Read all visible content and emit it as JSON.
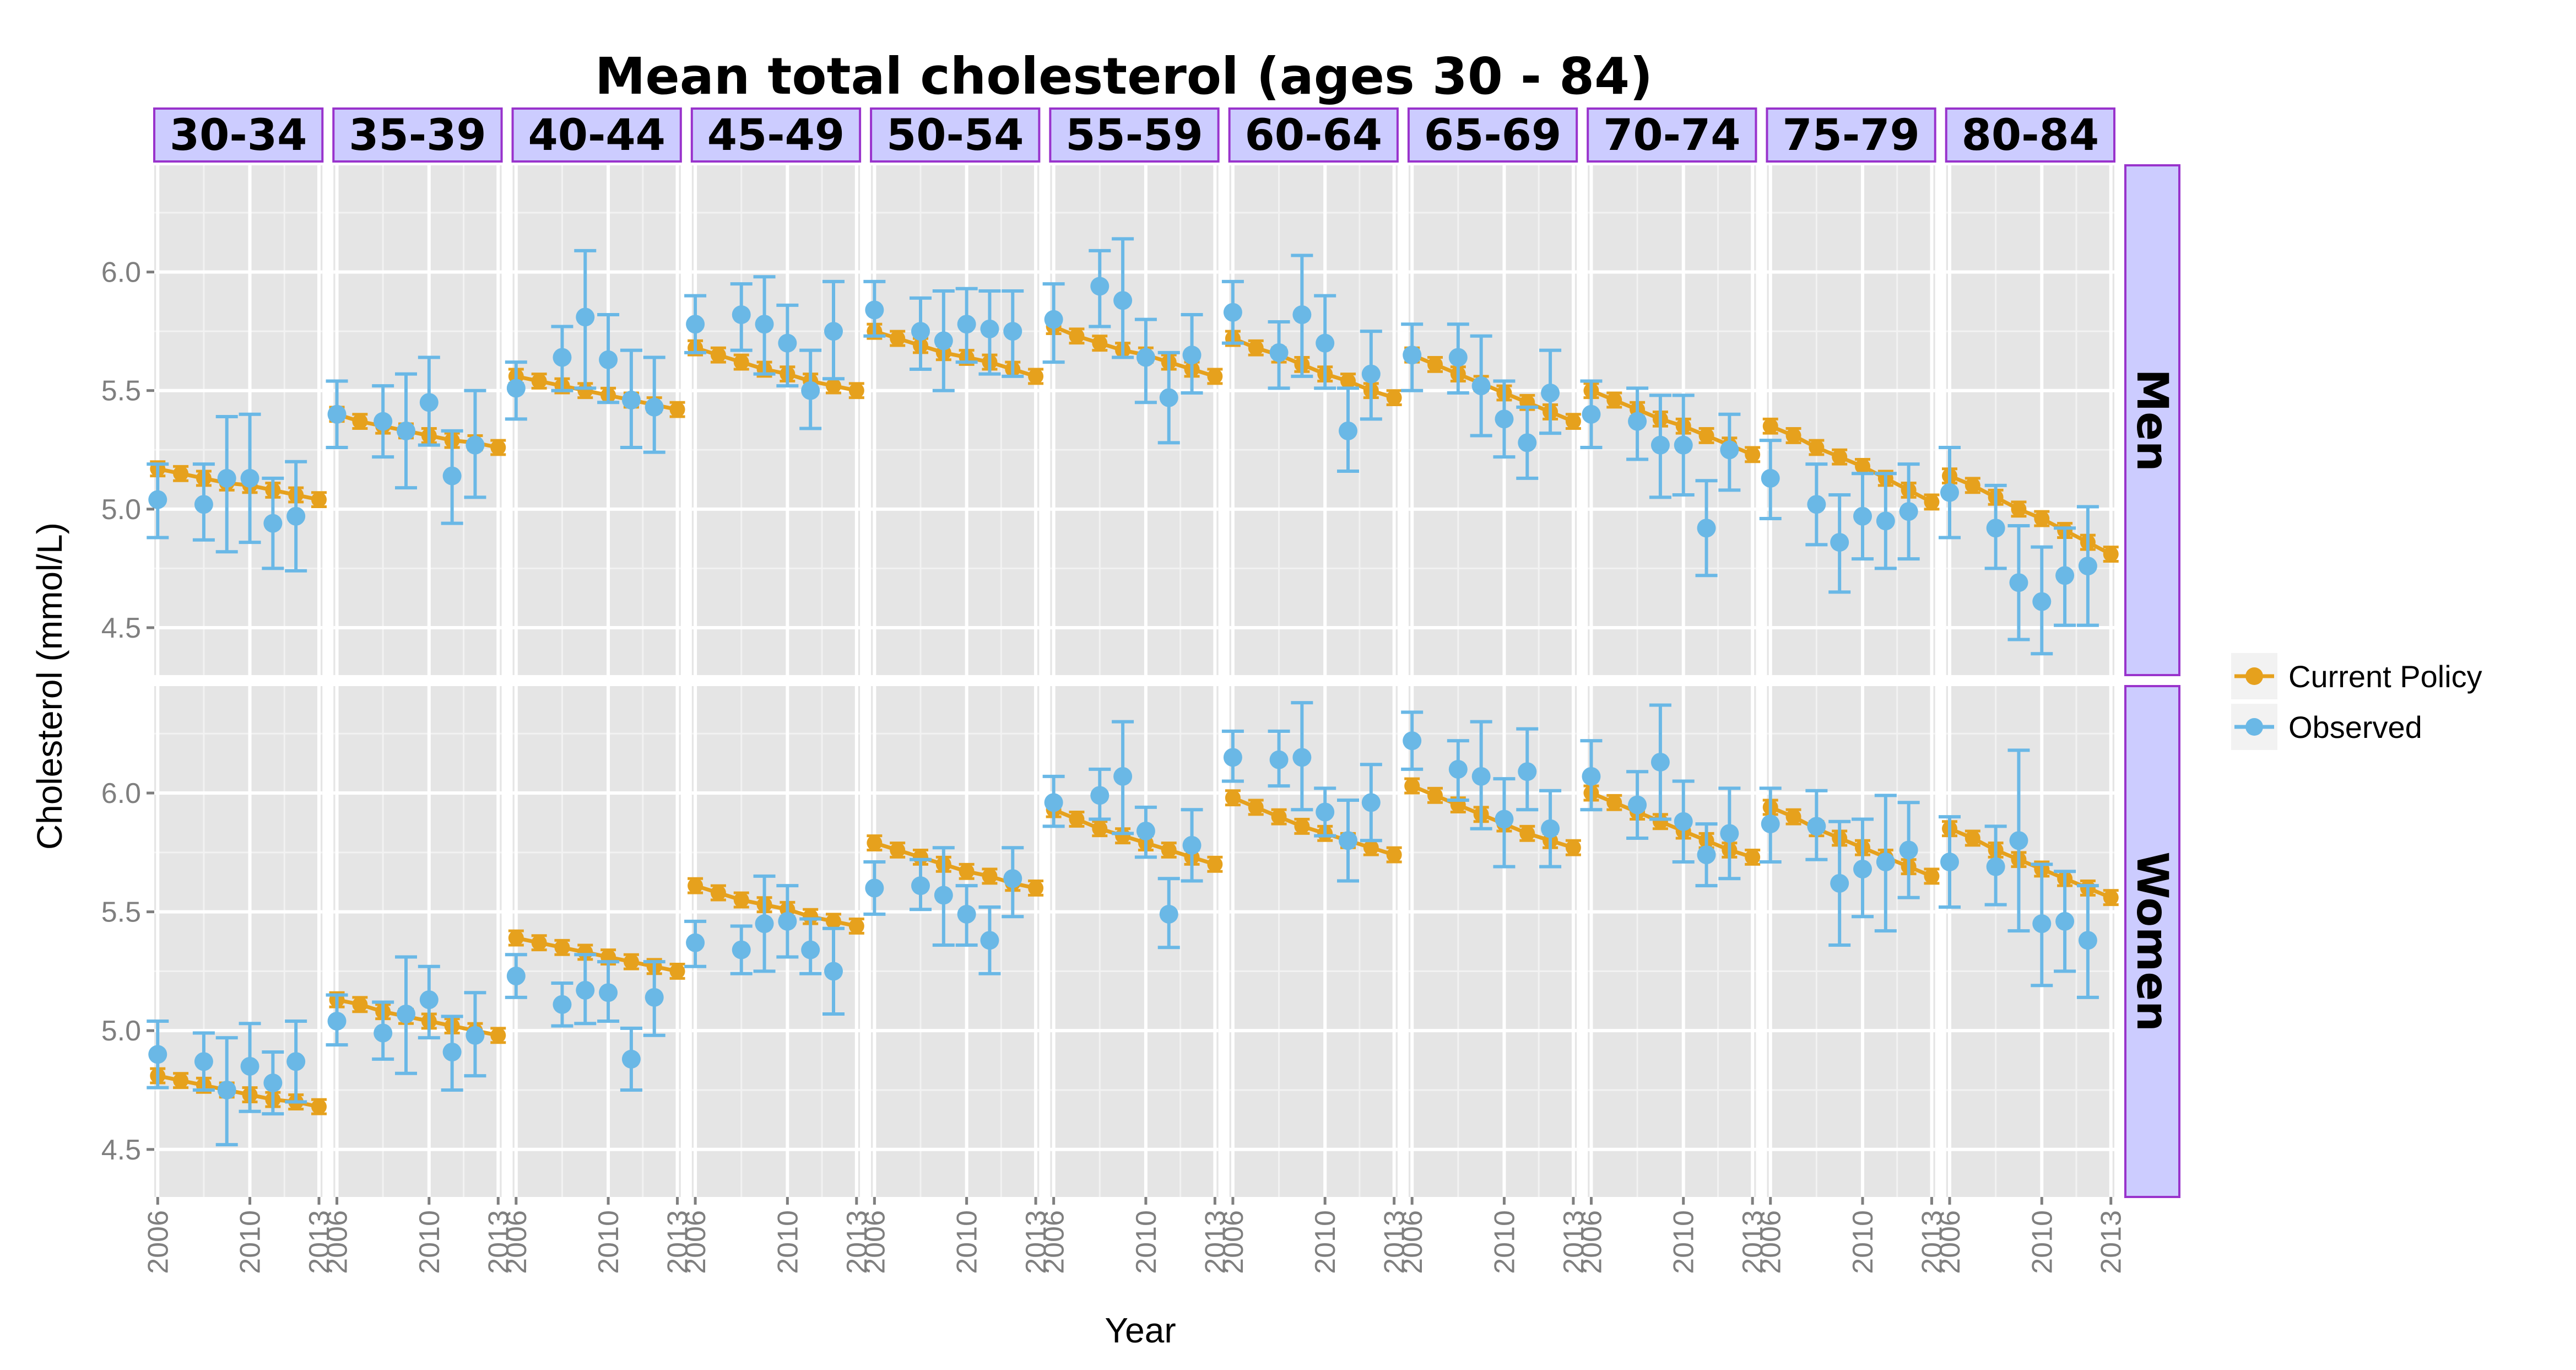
{
  "chart_data": {
    "type": "line",
    "title": "Mean total cholesterol (ages 30 - 84)",
    "xlabel": "Year",
    "ylabel": "Cholesterol (mmol/L)",
    "ylim": [
      4.3,
      6.45
    ],
    "yticks": [
      "4.5",
      "5.0",
      "5.5",
      "6.0"
    ],
    "xticks": [
      "2006",
      "2010",
      "2013"
    ],
    "facet_columns": [
      "30-34",
      "35-39",
      "40-44",
      "45-49",
      "50-54",
      "55-59",
      "60-64",
      "65-69",
      "70-74",
      "75-79",
      "80-84"
    ],
    "facet_rows": [
      "Men",
      "Women"
    ],
    "legend": {
      "position": "right",
      "entries": [
        {
          "name": "Current Policy",
          "color": "#e6a11d"
        },
        {
          "name": "Observed",
          "color": "#6ab8e6"
        }
      ]
    },
    "series": [
      {
        "name": "Current Policy",
        "color": "#e6a11d",
        "years": [
          2006,
          2007,
          2008,
          2009,
          2010,
          2011,
          2012,
          2013
        ],
        "error": 0.03,
        "Men": {
          "30-34": [
            5.17,
            5.15,
            5.13,
            5.11,
            5.1,
            5.08,
            5.06,
            5.04
          ],
          "35-39": [
            5.4,
            5.37,
            5.35,
            5.33,
            5.31,
            5.29,
            5.28,
            5.26
          ],
          "40-44": [
            5.56,
            5.54,
            5.52,
            5.5,
            5.48,
            5.46,
            5.44,
            5.42
          ],
          "45-49": [
            5.68,
            5.65,
            5.62,
            5.59,
            5.57,
            5.54,
            5.52,
            5.5
          ],
          "50-54": [
            5.75,
            5.72,
            5.69,
            5.66,
            5.64,
            5.62,
            5.59,
            5.56
          ],
          "55-59": [
            5.77,
            5.73,
            5.7,
            5.67,
            5.65,
            5.62,
            5.59,
            5.56
          ],
          "60-64": [
            5.72,
            5.68,
            5.65,
            5.61,
            5.57,
            5.54,
            5.5,
            5.47
          ],
          "65-69": [
            5.65,
            5.61,
            5.57,
            5.53,
            5.49,
            5.45,
            5.41,
            5.37
          ],
          "70-74": [
            5.5,
            5.46,
            5.42,
            5.38,
            5.35,
            5.31,
            5.27,
            5.23
          ],
          "75-79": [
            5.35,
            5.31,
            5.26,
            5.22,
            5.18,
            5.13,
            5.08,
            5.03
          ],
          "80-84": [
            5.14,
            5.1,
            5.05,
            5.0,
            4.96,
            4.91,
            4.86,
            4.81
          ]
        },
        "Women": {
          "30-34": [
            4.81,
            4.79,
            4.77,
            4.75,
            4.73,
            4.71,
            4.7,
            4.68
          ],
          "35-39": [
            5.13,
            5.11,
            5.08,
            5.06,
            5.04,
            5.02,
            5.0,
            4.98
          ],
          "40-44": [
            5.39,
            5.37,
            5.35,
            5.33,
            5.31,
            5.29,
            5.27,
            5.25
          ],
          "45-49": [
            5.61,
            5.58,
            5.55,
            5.53,
            5.51,
            5.48,
            5.46,
            5.44
          ],
          "50-54": [
            5.79,
            5.76,
            5.73,
            5.7,
            5.67,
            5.65,
            5.62,
            5.6
          ],
          "55-59": [
            5.93,
            5.89,
            5.85,
            5.82,
            5.79,
            5.76,
            5.73,
            5.7
          ],
          "60-64": [
            5.98,
            5.94,
            5.9,
            5.86,
            5.83,
            5.8,
            5.77,
            5.74
          ],
          "65-69": [
            6.03,
            5.99,
            5.95,
            5.91,
            5.87,
            5.83,
            5.8,
            5.77
          ],
          "70-74": [
            6.0,
            5.96,
            5.92,
            5.88,
            5.84,
            5.8,
            5.76,
            5.73
          ],
          "75-79": [
            5.94,
            5.9,
            5.85,
            5.81,
            5.77,
            5.73,
            5.69,
            5.65
          ],
          "80-84": [
            5.85,
            5.81,
            5.76,
            5.72,
            5.68,
            5.64,
            5.6,
            5.56
          ]
        }
      },
      {
        "name": "Observed",
        "color": "#6ab8e6",
        "years": [
          2006,
          2008,
          2009,
          2010,
          2011,
          2012
        ],
        "Men": {
          "30-34": {
            "values": [
              5.04,
              5.02,
              5.13,
              5.13,
              4.94,
              4.97
            ],
            "lower": [
              4.88,
              4.87,
              4.82,
              4.86,
              4.75,
              4.74
            ],
            "upper": [
              5.19,
              5.19,
              5.39,
              5.4,
              5.13,
              5.2
            ]
          },
          "35-39": {
            "values": [
              5.4,
              5.37,
              5.33,
              5.45,
              5.14,
              5.27
            ],
            "lower": [
              5.26,
              5.22,
              5.09,
              5.27,
              4.94,
              5.05
            ],
            "upper": [
              5.54,
              5.52,
              5.57,
              5.64,
              5.33,
              5.5
            ]
          },
          "40-44": {
            "values": [
              5.51,
              5.64,
              5.81,
              5.63,
              5.46,
              5.43
            ],
            "lower": [
              5.38,
              5.5,
              5.51,
              5.45,
              5.26,
              5.24
            ],
            "upper": [
              5.62,
              5.77,
              6.09,
              5.82,
              5.67,
              5.64
            ]
          },
          "45-49": {
            "values": [
              5.78,
              5.82,
              5.78,
              5.7,
              5.5,
              5.75
            ],
            "lower": [
              5.66,
              5.67,
              5.57,
              5.52,
              5.34,
              5.55
            ],
            "upper": [
              5.9,
              5.95,
              5.98,
              5.86,
              5.67,
              5.96
            ]
          },
          "50-54": {
            "values": [
              5.84,
              5.75,
              5.71,
              5.78,
              5.76,
              5.75
            ],
            "lower": [
              5.73,
              5.59,
              5.5,
              5.62,
              5.57,
              5.56
            ],
            "upper": [
              5.96,
              5.89,
              5.92,
              5.93,
              5.92,
              5.92
            ]
          },
          "55-59": {
            "values": [
              5.8,
              5.94,
              5.88,
              5.64,
              5.47,
              5.65
            ],
            "lower": [
              5.62,
              5.77,
              5.64,
              5.45,
              5.28,
              5.49
            ],
            "upper": [
              5.95,
              6.09,
              6.14,
              5.8,
              5.66,
              5.82
            ]
          },
          "60-64": {
            "values": [
              5.83,
              5.66,
              5.82,
              5.7,
              5.33,
              5.57
            ],
            "lower": [
              5.7,
              5.51,
              5.56,
              5.51,
              5.16,
              5.38
            ],
            "upper": [
              5.96,
              5.79,
              6.07,
              5.9,
              5.51,
              5.75
            ]
          },
          "65-69": {
            "values": [
              5.65,
              5.64,
              5.52,
              5.38,
              5.28,
              5.49
            ],
            "lower": [
              5.5,
              5.49,
              5.31,
              5.22,
              5.13,
              5.32
            ],
            "upper": [
              5.78,
              5.78,
              5.73,
              5.54,
              5.43,
              5.67
            ]
          },
          "70-74": {
            "values": [
              5.4,
              5.37,
              5.27,
              5.27,
              4.92,
              5.25
            ],
            "lower": [
              5.26,
              5.21,
              5.05,
              5.06,
              4.72,
              5.08
            ],
            "upper": [
              5.54,
              5.51,
              5.48,
              5.48,
              5.12,
              5.4
            ]
          },
          "75-79": {
            "values": [
              5.13,
              5.02,
              4.86,
              4.97,
              4.95,
              4.99
            ],
            "lower": [
              4.96,
              4.85,
              4.65,
              4.79,
              4.75,
              4.79
            ],
            "upper": [
              5.29,
              5.19,
              5.06,
              5.15,
              5.15,
              5.19
            ]
          },
          "80-84": {
            "values": [
              5.07,
              4.92,
              4.69,
              4.61,
              4.72,
              4.76
            ],
            "lower": [
              4.88,
              4.75,
              4.45,
              4.39,
              4.51,
              4.51
            ],
            "upper": [
              5.26,
              5.1,
              4.93,
              4.84,
              4.92,
              5.01
            ]
          }
        },
        "Women": {
          "30-34": {
            "values": [
              4.9,
              4.87,
              4.75,
              4.85,
              4.78,
              4.87
            ],
            "lower": [
              4.76,
              4.75,
              4.52,
              4.66,
              4.65,
              4.7
            ],
            "upper": [
              5.04,
              4.99,
              4.97,
              5.03,
              4.91,
              5.04
            ]
          },
          "35-39": {
            "values": [
              5.04,
              4.99,
              5.07,
              5.13,
              4.91,
              4.98
            ],
            "lower": [
              4.94,
              4.88,
              4.82,
              4.97,
              4.75,
              4.81
            ],
            "upper": [
              5.15,
              5.12,
              5.31,
              5.27,
              5.06,
              5.16
            ]
          },
          "40-44": {
            "values": [
              5.23,
              5.11,
              5.17,
              5.16,
              4.88,
              5.14
            ],
            "lower": [
              5.14,
              5.02,
              5.03,
              5.04,
              4.75,
              4.98
            ],
            "upper": [
              5.32,
              5.2,
              5.32,
              5.29,
              5.01,
              5.29
            ]
          },
          "45-49": {
            "values": [
              5.37,
              5.34,
              5.45,
              5.46,
              5.34,
              5.25
            ],
            "lower": [
              5.27,
              5.24,
              5.25,
              5.31,
              5.24,
              5.07
            ],
            "upper": [
              5.46,
              5.44,
              5.65,
              5.61,
              5.47,
              5.43
            ]
          },
          "50-54": {
            "values": [
              5.6,
              5.61,
              5.57,
              5.49,
              5.38,
              5.64
            ],
            "lower": [
              5.49,
              5.51,
              5.36,
              5.36,
              5.24,
              5.48
            ],
            "upper": [
              5.71,
              5.72,
              5.77,
              5.61,
              5.52,
              5.77
            ]
          },
          "55-59": {
            "values": [
              5.96,
              5.99,
              6.07,
              5.84,
              5.49,
              5.78
            ],
            "lower": [
              5.86,
              5.89,
              5.83,
              5.73,
              5.35,
              5.63
            ],
            "upper": [
              6.07,
              6.1,
              6.3,
              5.94,
              5.64,
              5.93
            ]
          },
          "60-64": {
            "values": [
              6.15,
              6.14,
              6.15,
              5.92,
              5.8,
              5.96
            ],
            "lower": [
              6.05,
              6.03,
              5.93,
              5.82,
              5.63,
              5.8
            ],
            "upper": [
              6.26,
              6.26,
              6.38,
              6.02,
              5.97,
              6.12
            ]
          },
          "65-69": {
            "values": [
              6.22,
              6.1,
              6.07,
              5.89,
              6.09,
              5.85
            ],
            "lower": [
              6.1,
              5.97,
              5.85,
              5.69,
              5.93,
              5.69
            ],
            "upper": [
              6.34,
              6.22,
              6.3,
              6.06,
              6.27,
              6.01
            ]
          },
          "70-74": {
            "values": [
              6.07,
              5.95,
              6.13,
              5.88,
              5.74,
              5.83
            ],
            "lower": [
              5.93,
              5.81,
              5.89,
              5.71,
              5.61,
              5.64
            ],
            "upper": [
              6.22,
              6.09,
              6.37,
              6.05,
              5.87,
              6.02
            ]
          },
          "75-79": {
            "values": [
              5.87,
              5.86,
              5.62,
              5.68,
              5.71,
              5.76
            ],
            "lower": [
              5.71,
              5.72,
              5.36,
              5.48,
              5.42,
              5.56
            ],
            "upper": [
              6.02,
              6.01,
              5.88,
              5.89,
              5.99,
              5.96
            ]
          },
          "80-84": {
            "values": [
              5.71,
              5.69,
              5.8,
              5.45,
              5.46,
              5.38
            ],
            "lower": [
              5.52,
              5.53,
              5.42,
              5.19,
              5.25,
              5.14
            ],
            "upper": [
              5.9,
              5.86,
              6.18,
              5.7,
              5.67,
              5.61
            ]
          }
        }
      }
    ]
  }
}
